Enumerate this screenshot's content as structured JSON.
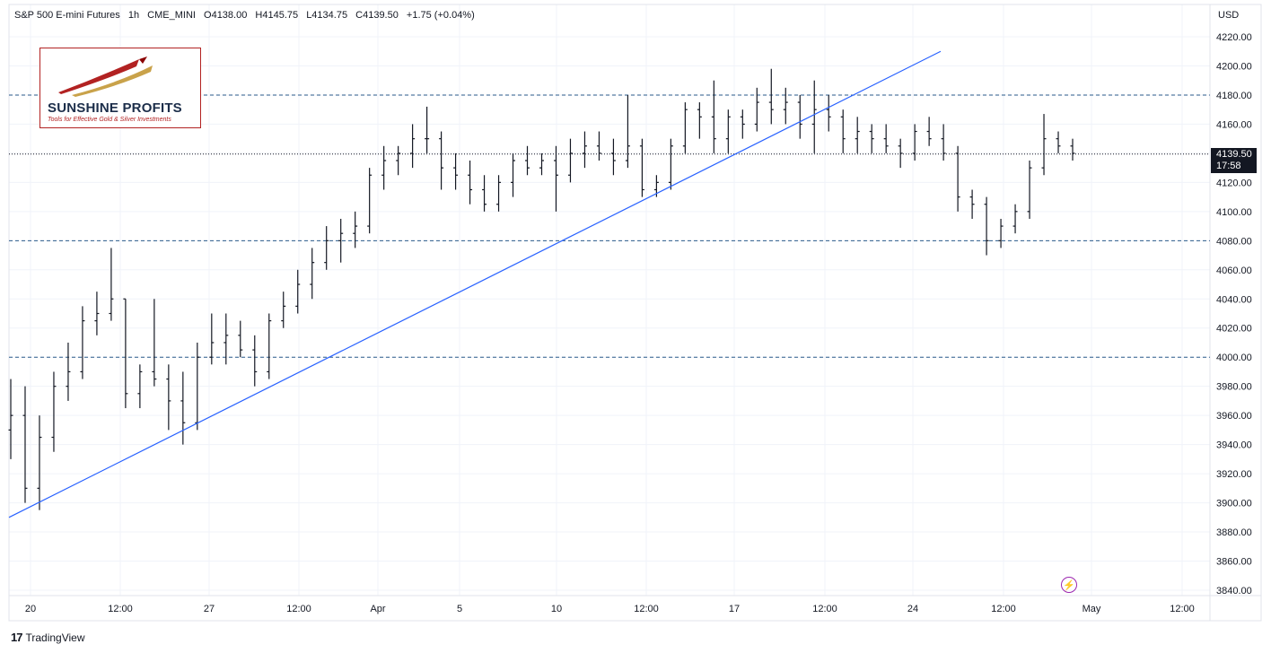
{
  "header": {
    "symbol": "S&P 500 E-mini Futures",
    "interval": "1h",
    "exchange": "CME_MINI",
    "open": "O4138.00",
    "high": "H4145.75",
    "low": "L4134.75",
    "close": "C4139.50",
    "change": "+1.75 (+0.04%)"
  },
  "currency": "USD",
  "last_price": {
    "price": "4139.50",
    "countdown": "17:58"
  },
  "logo": {
    "name": "SUNSHINE PROFITS",
    "tagline": "Tools for Effective Gold & Silver Investments"
  },
  "footer": {
    "brand": "TradingView",
    "mark": "17"
  },
  "icons": {
    "alert": "lightning-icon",
    "brand": "tradingview-logo-icon"
  },
  "colors": {
    "trendline": "#2962ff",
    "level_line": "#2a5a8a",
    "bars": "#131722",
    "grid": "#f0f3fa"
  },
  "chart_data": {
    "type": "bar",
    "subtype": "ohlc",
    "ylim": [
      3830,
      4230
    ],
    "y_ticks": [
      "4220.00",
      "4200.00",
      "4180.00",
      "4160.00",
      "4140.00",
      "4120.00",
      "4100.00",
      "4080.00",
      "4060.00",
      "4040.00",
      "4020.00",
      "4000.00",
      "3980.00",
      "3960.00",
      "3940.00",
      "3920.00",
      "3900.00",
      "3880.00",
      "3860.00",
      "3840.00"
    ],
    "x_ticks": [
      "20",
      "12:00",
      "27",
      "12:00",
      "Apr",
      "5",
      "10",
      "12:00",
      "17",
      "12:00",
      "24",
      "12:00",
      "May",
      "12:00"
    ],
    "horizontal_levels": [
      4180,
      4080,
      4000
    ],
    "trendline": {
      "from": [
        "20",
        3890
      ],
      "to": [
        "26 Apr",
        4210
      ]
    },
    "series": [
      {
        "values": [
          [
            3950,
            3985,
            3930,
            3960
          ],
          [
            3960,
            3980,
            3900,
            3910
          ],
          [
            3910,
            3960,
            3895,
            3945
          ],
          [
            3945,
            3990,
            3935,
            3980
          ],
          [
            3980,
            4010,
            3970,
            3990
          ],
          [
            3990,
            4035,
            3985,
            4025
          ],
          [
            4025,
            4045,
            4015,
            4030
          ],
          [
            4030,
            4075,
            4025,
            4040
          ],
          [
            4040,
            4040,
            3965,
            3975
          ],
          [
            3975,
            3995,
            3965,
            3990
          ],
          [
            3990,
            4040,
            3980,
            3985
          ],
          [
            3985,
            3995,
            3950,
            3970
          ],
          [
            3970,
            3990,
            3940,
            3955
          ],
          [
            3955,
            4010,
            3950,
            4000
          ],
          [
            4000,
            4030,
            3995,
            4010
          ],
          [
            4010,
            4030,
            3995,
            4015
          ],
          [
            4015,
            4025,
            4000,
            4005
          ],
          [
            4005,
            4015,
            3980,
            3990
          ],
          [
            3990,
            4030,
            3985,
            4025
          ],
          [
            4025,
            4045,
            4020,
            4035
          ],
          [
            4035,
            4060,
            4030,
            4050
          ],
          [
            4050,
            4075,
            4040,
            4065
          ],
          [
            4065,
            4090,
            4060,
            4080
          ],
          [
            4080,
            4095,
            4065,
            4085
          ],
          [
            4085,
            4100,
            4075,
            4090
          ],
          [
            4090,
            4130,
            4085,
            4125
          ],
          [
            4125,
            4145,
            4115,
            4135
          ],
          [
            4135,
            4145,
            4125,
            4140
          ],
          [
            4140,
            4160,
            4130,
            4150
          ],
          [
            4150,
            4172,
            4140,
            4150
          ],
          [
            4150,
            4155,
            4115,
            4130
          ],
          [
            4130,
            4140,
            4115,
            4125
          ],
          [
            4125,
            4135,
            4105,
            4115
          ],
          [
            4115,
            4125,
            4100,
            4105
          ],
          [
            4105,
            4125,
            4100,
            4120
          ],
          [
            4120,
            4140,
            4110,
            4135
          ],
          [
            4135,
            4145,
            4125,
            4130
          ],
          [
            4130,
            4140,
            4125,
            4135
          ],
          [
            4135,
            4145,
            4100,
            4125
          ],
          [
            4125,
            4150,
            4120,
            4140
          ],
          [
            4140,
            4155,
            4130,
            4145
          ],
          [
            4145,
            4155,
            4135,
            4140
          ],
          [
            4140,
            4150,
            4125,
            4135
          ],
          [
            4135,
            4180,
            4130,
            4145
          ],
          [
            4145,
            4150,
            4110,
            4115
          ],
          [
            4115,
            4125,
            4110,
            4120
          ],
          [
            4120,
            4150,
            4115,
            4145
          ],
          [
            4145,
            4175,
            4140,
            4170
          ],
          [
            4170,
            4175,
            4150,
            4165
          ],
          [
            4165,
            4190,
            4140,
            4150
          ],
          [
            4150,
            4170,
            4140,
            4165
          ],
          [
            4165,
            4170,
            4150,
            4160
          ],
          [
            4160,
            4185,
            4155,
            4175
          ],
          [
            4175,
            4198,
            4160,
            4170
          ],
          [
            4170,
            4185,
            4160,
            4175
          ],
          [
            4175,
            4180,
            4150,
            4160
          ],
          [
            4160,
            4190,
            4140,
            4170
          ],
          [
            4170,
            4180,
            4155,
            4165
          ],
          [
            4165,
            4170,
            4140,
            4150
          ],
          [
            4150,
            4165,
            4140,
            4155
          ],
          [
            4155,
            4160,
            4140,
            4150
          ],
          [
            4150,
            4160,
            4140,
            4145
          ],
          [
            4145,
            4150,
            4130,
            4140
          ],
          [
            4140,
            4160,
            4135,
            4155
          ],
          [
            4155,
            4165,
            4145,
            4150
          ],
          [
            4150,
            4160,
            4135,
            4140
          ],
          [
            4140,
            4145,
            4100,
            4110
          ],
          [
            4110,
            4115,
            4095,
            4105
          ],
          [
            4105,
            4110,
            4070,
            4080
          ],
          [
            4080,
            4095,
            4075,
            4090
          ],
          [
            4090,
            4105,
            4085,
            4100
          ],
          [
            4100,
            4135,
            4095,
            4130
          ],
          [
            4130,
            4167,
            4125,
            4150
          ],
          [
            4150,
            4155,
            4140,
            4145
          ],
          [
            4145,
            4150,
            4135,
            4140
          ]
        ]
      }
    ]
  }
}
